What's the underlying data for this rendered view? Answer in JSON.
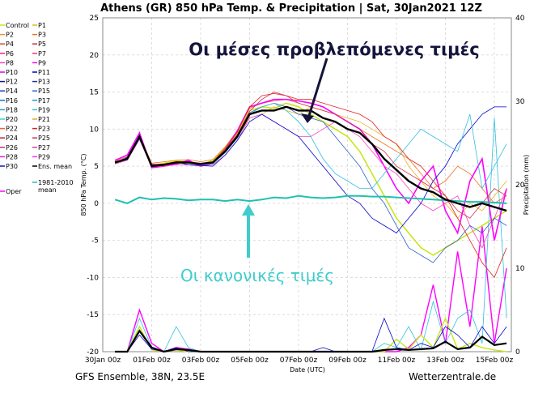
{
  "chart_data": {
    "type": "line",
    "title": "Athens  (GR)  850 hPa Temp. & Precipitation | Sat, 30Jan2021 12Z",
    "xlabel": "Date (UTC)",
    "ylabel": "850 hPa Temp. (°C)",
    "ylabel_right": "Precipitation (mm)",
    "ylim": [
      -20,
      25
    ],
    "ylim_right": [
      0,
      40
    ],
    "yticks": [
      "25",
      "20",
      "15",
      "10",
      "5",
      "0",
      "-5",
      "-10",
      "-15",
      "-20"
    ],
    "yticks_right": [
      "40",
      "30",
      "20",
      "10",
      "0"
    ],
    "xticks": [
      "30Jan 00z",
      "01Feb 00z",
      "03Feb 00z",
      "05Feb 00z",
      "07Feb 00z",
      "09Feb 00z",
      "11Feb 00z",
      "13Feb 00z",
      "15Feb 00z"
    ],
    "x_start": "30Jan 12z",
    "x_step_hours": 12,
    "grid": true,
    "footer_left": "GFS Ensemble, 38N, 23.5E",
    "footer_right": "Wetterzentrale.de",
    "legend": [
      {
        "name": "Control",
        "color": "#c8e619"
      },
      {
        "name": "P1",
        "color": "#f0b020"
      },
      {
        "name": "P2",
        "color": "#f09030"
      },
      {
        "name": "P3",
        "color": "#f07020"
      },
      {
        "name": "P4",
        "color": "#d05030"
      },
      {
        "name": "P5",
        "color": "#c03030"
      },
      {
        "name": "P6",
        "color": "#ff2080"
      },
      {
        "name": "P7",
        "color": "#ff3070"
      },
      {
        "name": "P8",
        "color": "#ff40c0"
      },
      {
        "name": "P9",
        "color": "#ff00ff"
      },
      {
        "name": "P10",
        "color": "#e000e0"
      },
      {
        "name": "P11",
        "color": "#0000cc"
      },
      {
        "name": "P12",
        "color": "#1010a0"
      },
      {
        "name": "P13",
        "color": "#2030b0"
      },
      {
        "name": "P14",
        "color": "#2040c0"
      },
      {
        "name": "P15",
        "color": "#3060d0"
      },
      {
        "name": "P16",
        "color": "#2070c0"
      },
      {
        "name": "P17",
        "color": "#3090d0"
      },
      {
        "name": "P18",
        "color": "#20a0d0"
      },
      {
        "name": "P19",
        "color": "#30c0e0"
      },
      {
        "name": "P20",
        "color": "#40d0d0"
      },
      {
        "name": "P21",
        "color": "#f0a030"
      },
      {
        "name": "P22",
        "color": "#f06030"
      },
      {
        "name": "P23",
        "color": "#e02020"
      },
      {
        "name": "P24",
        "color": "#c02040"
      },
      {
        "name": "P25",
        "color": "#d03050"
      },
      {
        "name": "P26",
        "color": "#c03080"
      },
      {
        "name": "P27",
        "color": "#d040a0"
      },
      {
        "name": "P28",
        "color": "#e020e0"
      },
      {
        "name": "P29",
        "color": "#ff30ff"
      },
      {
        "name": "P30",
        "color": "#1010c0"
      },
      {
        "name": "Ens. mean",
        "color": "#000000"
      },
      {
        "name": "Oper",
        "color": "#ff00ff"
      },
      {
        "name": "1981-2010 mean",
        "color": "#20c0b0"
      }
    ],
    "series": [
      {
        "name": "Control",
        "color": "#c8e619",
        "width": 1.6,
        "values": [
          5.3,
          6,
          8.8,
          5,
          5.4,
          5.7,
          5.6,
          5.2,
          5.8,
          7.5,
          9.5,
          12.5,
          13,
          12.8,
          13.5,
          13,
          12,
          11,
          10,
          9,
          7,
          4,
          1,
          -2,
          -4,
          -6,
          -7,
          -6,
          -5,
          -4,
          -3,
          -2,
          -1
        ]
      },
      {
        "name": "P1",
        "color": "#f0b020",
        "width": 0.8,
        "values": [
          5.6,
          6,
          9,
          5.1,
          5.3,
          5.5,
          5.5,
          5.3,
          5.5,
          7,
          9,
          11.5,
          12,
          13,
          12.5,
          12,
          13,
          12.5,
          12,
          11.5,
          11,
          10,
          9,
          8,
          5,
          3,
          1,
          0,
          -2,
          0,
          -1,
          1,
          3
        ]
      },
      {
        "name": "P3",
        "color": "#f07020",
        "width": 0.8,
        "values": [
          5.7,
          6.3,
          9.1,
          5.4,
          5.6,
          5.8,
          5.9,
          5.6,
          5.9,
          7.6,
          9.8,
          12.8,
          13.5,
          13.8,
          14,
          13.5,
          13,
          12.5,
          12,
          11,
          10,
          9,
          8,
          7,
          6,
          4,
          2,
          3,
          5,
          4,
          2,
          0,
          1
        ]
      },
      {
        "name": "P6",
        "color": "#ff00ff",
        "width": 1.6,
        "values": [
          5.8,
          6.5,
          9.5,
          4.8,
          5,
          5.3,
          5.8,
          5,
          5.4,
          7.2,
          9.8,
          13,
          13.5,
          14,
          14,
          13.8,
          13.5,
          13,
          12,
          11,
          10,
          8,
          5,
          2,
          0,
          3,
          5,
          -1,
          -4,
          3,
          6,
          -5,
          2
        ]
      },
      {
        "name": "P8",
        "color": "#ff40c0",
        "width": 0.8,
        "values": [
          5.3,
          5.8,
          8.6,
          4.9,
          5,
          5.2,
          5.2,
          5,
          5.2,
          6.5,
          8.5,
          11.5,
          12,
          11,
          10,
          9,
          9,
          10,
          11,
          10,
          9,
          7,
          5,
          4,
          2,
          0,
          -1,
          0,
          1,
          -3,
          -6,
          -2,
          2
        ]
      },
      {
        "name": "P11",
        "color": "#0000cc",
        "width": 0.8,
        "values": [
          5.5,
          6.2,
          9.2,
          5.2,
          5.1,
          5.6,
          5.2,
          5.1,
          5,
          6.5,
          8.5,
          11,
          12,
          11,
          10,
          9,
          7,
          5,
          3,
          1,
          0,
          -2,
          -3,
          -4,
          -2,
          0,
          3,
          5,
          8,
          10,
          12,
          13,
          13
        ]
      },
      {
        "name": "P15",
        "color": "#3060d0",
        "width": 0.8,
        "values": [
          5.4,
          5.9,
          8.7,
          5.1,
          5.3,
          5.4,
          5.5,
          5.4,
          5.6,
          7,
          9.2,
          12.2,
          13,
          13.5,
          13,
          12,
          11.5,
          11,
          9,
          7,
          5,
          2,
          0,
          -3,
          -6,
          -7,
          -8,
          -6,
          -5,
          -3,
          -4,
          -2,
          -3
        ]
      },
      {
        "name": "P19",
        "color": "#30c0e0",
        "width": 0.8,
        "values": [
          5.6,
          6.1,
          9,
          5,
          5.2,
          5.5,
          5.4,
          5.2,
          5.3,
          6.8,
          8.8,
          12,
          13,
          13.5,
          12.5,
          11,
          9,
          6,
          4,
          3,
          2,
          2,
          4,
          6,
          8,
          10,
          9,
          8,
          7,
          12,
          2,
          5,
          8
        ]
      },
      {
        "name": "P23",
        "color": "#e02020",
        "width": 0.8,
        "values": [
          5.5,
          6,
          8.9,
          5.3,
          5.3,
          5.6,
          5.6,
          5.4,
          5.6,
          7.4,
          9.6,
          13,
          14.5,
          14.8,
          14.5,
          14,
          14,
          13.5,
          13,
          12.5,
          12,
          11,
          9,
          8,
          6,
          5,
          3,
          1,
          -2,
          -5,
          -8,
          -10,
          -6
        ]
      },
      {
        "name": "P25",
        "color": "#d03050",
        "width": 0.8,
        "values": [
          5.5,
          6,
          9,
          5,
          5.2,
          5.5,
          5.6,
          5.3,
          5.5,
          7.2,
          9.3,
          12.4,
          14,
          15,
          14.5,
          13.5,
          13,
          12.5,
          12,
          11,
          10,
          8,
          7,
          5,
          4,
          3,
          2,
          1,
          -1,
          -2,
          0,
          2,
          1
        ]
      },
      {
        "name": "1981-2010 mean",
        "color": "#20c0b0",
        "width": 2,
        "values": [
          0.5,
          0,
          0.8,
          0.5,
          0.7,
          0.6,
          0.4,
          0.5,
          0.5,
          0.3,
          0.5,
          0.3,
          0.5,
          0.8,
          0.7,
          1,
          0.8,
          0.7,
          0.8,
          1,
          1,
          0.9,
          0.9,
          0.8,
          0.7,
          0.6,
          0.5,
          0.4,
          0.3,
          0.2,
          0.2,
          0.1,
          0
        ]
      },
      {
        "name": "Ens. mean",
        "color": "#000000",
        "width": 2.4,
        "values": [
          5.5,
          6,
          9,
          5,
          5.2,
          5.5,
          5.5,
          5.3,
          5.5,
          7,
          9,
          12,
          12.5,
          12.5,
          13,
          12.5,
          12.5,
          11.5,
          11,
          10,
          9.5,
          8,
          6,
          4.5,
          3,
          2,
          1.5,
          0.5,
          0,
          -0.5,
          0,
          -0.5,
          -1
        ]
      }
    ],
    "precip_series": [
      {
        "name": "P6",
        "color": "#ff00ff",
        "width": 1.4,
        "values": [
          0,
          0,
          5,
          1,
          0,
          0.5,
          0.3,
          0,
          0,
          0,
          0,
          0,
          0,
          0,
          0,
          0,
          0,
          0,
          0,
          0,
          0,
          0,
          0,
          0,
          0.5,
          2,
          8,
          1,
          12,
          3,
          15,
          1,
          10
        ]
      },
      {
        "name": "P19",
        "color": "#30c0e0",
        "width": 0.8,
        "values": [
          0,
          0,
          4,
          0.5,
          0,
          3,
          0.5,
          0,
          0,
          0,
          0,
          0,
          0,
          0,
          0,
          0,
          0,
          0,
          0,
          0,
          0,
          0,
          1,
          0.5,
          3,
          0.2,
          6,
          1,
          4,
          5,
          1,
          28,
          4
        ]
      },
      {
        "name": "Control",
        "color": "#c8e619",
        "width": 1.4,
        "values": [
          0,
          0,
          3,
          0.2,
          0,
          0.2,
          0,
          0,
          0,
          0,
          0,
          0,
          0,
          0,
          0,
          0,
          0,
          0,
          0,
          0,
          0,
          0,
          0,
          1.5,
          0.3,
          2,
          0.5,
          4,
          0.3,
          1,
          0.5,
          0.2,
          0
        ]
      },
      {
        "name": "P11",
        "color": "#0000cc",
        "width": 0.8,
        "values": [
          0,
          0,
          2,
          0.3,
          0,
          0.5,
          0,
          0,
          0,
          0,
          0,
          0,
          0,
          0,
          0,
          0,
          0,
          0.5,
          0,
          0,
          0,
          0,
          4,
          0.5,
          0.2,
          1,
          0.5,
          3,
          2,
          0.5,
          3,
          1,
          3
        ]
      },
      {
        "name": "Ens. mean",
        "color": "#000000",
        "width": 2.2,
        "values": [
          0,
          0,
          2.5,
          0.5,
          0,
          0.3,
          0.2,
          0,
          0,
          0,
          0,
          0,
          0,
          0,
          0,
          0,
          0,
          0,
          0,
          0,
          0,
          0,
          0.2,
          0.3,
          0.2,
          0.3,
          0.4,
          1.2,
          0.3,
          0.5,
          1.8,
          0.8,
          1
        ]
      }
    ],
    "annotations": [
      {
        "text": "Οι μέσες προβλεπόμενες τιμές",
        "color": "#14143c",
        "points_to": "Ens. mean"
      },
      {
        "text": "Οι κανονικές τιμές",
        "color": "#40cccc",
        "points_to": "1981-2010 mean"
      }
    ]
  }
}
